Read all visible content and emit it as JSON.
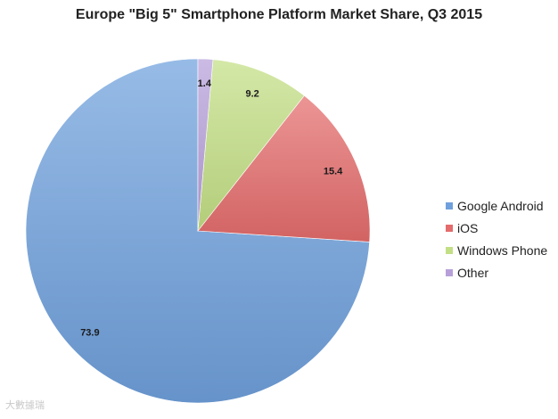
{
  "chart_data": {
    "type": "pie",
    "title": "Europe \"Big 5\" Smartphone Platform Market Share, Q3 2015",
    "legend_position": "right",
    "slices": [
      {
        "name": "Google Android",
        "value": 73.9,
        "label": "73.9",
        "color": "#6fa0dc"
      },
      {
        "name": "iOS",
        "value": 15.4,
        "label": "15.4",
        "color": "#e46c6c"
      },
      {
        "name": "Windows Phone",
        "value": 9.2,
        "label": "9.2",
        "color": "#c3df85"
      },
      {
        "name": "Other",
        "value": 1.4,
        "label": "1.4",
        "color": "#b7a0d9"
      }
    ]
  },
  "watermark": {
    "text": "大數據瑞"
  }
}
